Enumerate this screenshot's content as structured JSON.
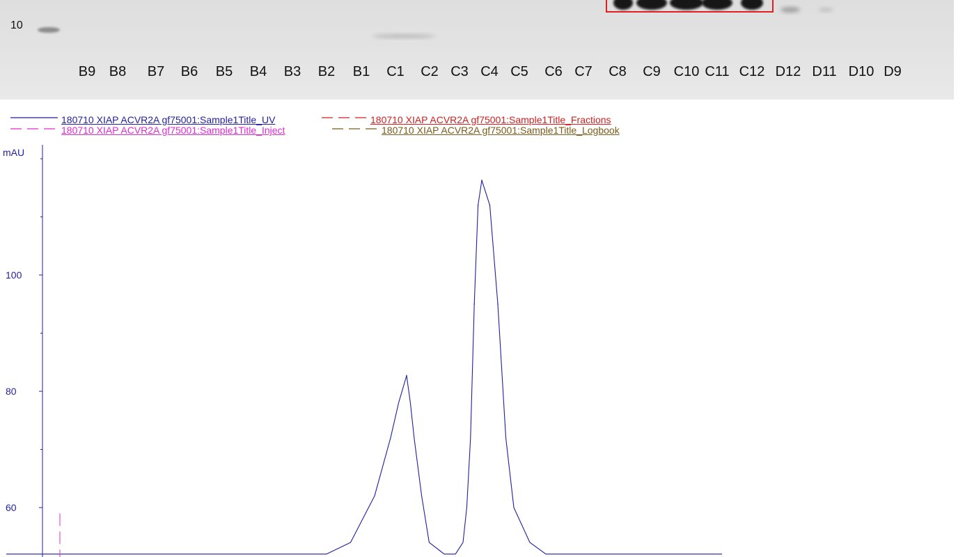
{
  "gel": {
    "marker_label": "10",
    "lanes": [
      "B9",
      "B8",
      "B7",
      "B6",
      "B5",
      "B4",
      "B3",
      "B2",
      "B1",
      "C1",
      "C2",
      "C3",
      "C4",
      "C5",
      "C6",
      "C7",
      "C8",
      "C9",
      "C10",
      "C11",
      "C12",
      "D12",
      "D11",
      "D10",
      "D9"
    ],
    "highlight_lanes": [
      "C8",
      "C9",
      "C10",
      "C11",
      "C12"
    ],
    "highlight_color": "#e02020"
  },
  "legend": {
    "items": [
      {
        "label": "180710 XIAP ACVR2A gf75001:Sample1Title_UV",
        "color": "#1f1f9f",
        "style": "solid"
      },
      {
        "label": "180710 XIAP ACVR2A gf75001:Sample1Title_Fractions",
        "color": "#d21e1e",
        "style": "dashed"
      },
      {
        "label": "180710 XIAP ACVR2A gf75001:Sample1Title_Inject",
        "color": "#e02bd0",
        "style": "dashed"
      },
      {
        "label": "180710 XIAP ACVR2A gf75001:Sample1Title_Logbook",
        "color": "#7a5a1a",
        "style": "dashed"
      }
    ]
  },
  "chart_data": {
    "type": "line",
    "title": "",
    "xlabel": "",
    "ylabel": "mAU",
    "yticks": [
      60,
      80,
      100
    ],
    "ylim": [
      52,
      120
    ],
    "grid": false,
    "legend_position": "top-left",
    "series": [
      {
        "name": "180710 XIAP ACVR2A gf75001:Sample1Title_UV",
        "color": "#1f1f9f",
        "x": [
          0,
          30,
          36,
          40,
          43,
          46,
          48,
          49,
          50,
          51,
          52,
          54,
          56,
          60,
          63,
          65,
          66,
          67,
          68,
          69,
          70,
          71,
          72,
          73,
          74,
          76,
          78,
          80,
          100
        ],
        "y": [
          52,
          52,
          52,
          52,
          54,
          62,
          72,
          78,
          82.7,
          78,
          72,
          62,
          54,
          52,
          52,
          54,
          60,
          72,
          95,
          112,
          116.3,
          112,
          95,
          72,
          60,
          54,
          52,
          52,
          52
        ]
      },
      {
        "name": "180710 XIAP ACVR2A gf75001:Sample1Title_Inject",
        "color": "#e02bd0",
        "x": [
          2,
          2
        ],
        "y": [
          52,
          59
        ]
      }
    ]
  }
}
